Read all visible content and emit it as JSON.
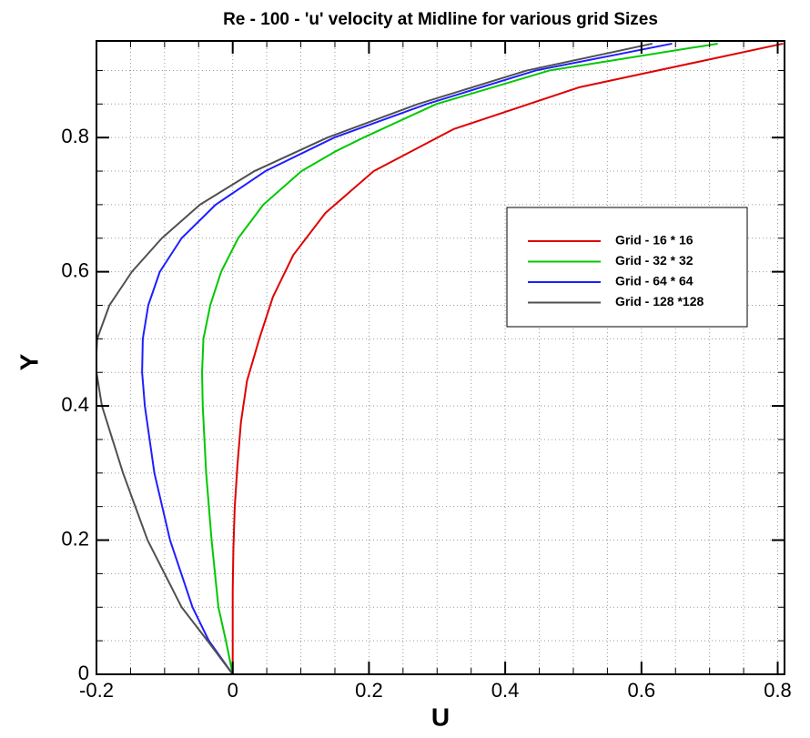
{
  "chart_data": {
    "type": "line",
    "title": "Re - 100 - 'u' velocity at Midline for various grid Sizes",
    "x_label": "U",
    "y_label": "Y",
    "xlim": [
      -0.2,
      0.81
    ],
    "ylim": [
      0,
      0.944
    ],
    "xticks": [
      -0.2,
      0,
      0.2,
      0.4,
      0.6,
      0.8
    ],
    "yticks": [
      0,
      0.2,
      0.4,
      0.6,
      0.8
    ],
    "xminorticks": [
      -0.15,
      -0.1,
      -0.05,
      0.05,
      0.1,
      0.15,
      0.25,
      0.3,
      0.35,
      0.45,
      0.5,
      0.55,
      0.65,
      0.7,
      0.75
    ],
    "yminorticks": [
      0.05,
      0.1,
      0.15,
      0.25,
      0.3,
      0.35,
      0.45,
      0.5,
      0.55,
      0.65,
      0.7,
      0.75,
      0.85,
      0.9
    ],
    "grid": true,
    "legend": "right",
    "series": [
      {
        "name": "Grid - 16 * 16",
        "color": "#e00000",
        "x": [
          0,
          0,
          0,
          0.001,
          0.003,
          0.007,
          0.012,
          0.021,
          0.039,
          0.059,
          0.089,
          0.136,
          0.207,
          0.324,
          0.509,
          0.808
        ],
        "values": [
          0,
          0.0625,
          0.125,
          0.1875,
          0.25,
          0.3125,
          0.375,
          0.4375,
          0.5,
          0.5625,
          0.625,
          0.6875,
          0.75,
          0.8125,
          0.875,
          0.94
        ]
      },
      {
        "name": "Grid - 32 * 32",
        "color": "#00c800",
        "x": [
          0,
          -0.01,
          -0.021,
          -0.031,
          -0.039,
          -0.044,
          -0.045,
          -0.043,
          -0.033,
          -0.017,
          0.008,
          0.045,
          0.101,
          0.152,
          0.192,
          0.299,
          0.465,
          0.712
        ],
        "values": [
          0,
          0.05,
          0.1,
          0.2,
          0.3,
          0.4,
          0.45,
          0.5,
          0.55,
          0.6,
          0.65,
          0.7,
          0.75,
          0.78,
          0.8,
          0.85,
          0.9,
          0.94
        ]
      },
      {
        "name": "Grid - 64 * 64",
        "color": "#1e1eff",
        "x": [
          0,
          -0.035,
          -0.059,
          -0.092,
          -0.115,
          -0.129,
          -0.133,
          -0.132,
          -0.124,
          -0.107,
          -0.075,
          -0.025,
          0.048,
          0.149,
          0.285,
          0.445,
          0.645
        ],
        "values": [
          0,
          0.05,
          0.1,
          0.2,
          0.3,
          0.4,
          0.45,
          0.5,
          0.55,
          0.6,
          0.65,
          0.7,
          0.75,
          0.8,
          0.85,
          0.9,
          0.94
        ]
      },
      {
        "name": "Grid - 128 *128",
        "color": "#505050",
        "x": [
          0,
          -0.037,
          -0.075,
          -0.125,
          -0.161,
          -0.192,
          -0.2,
          -0.2,
          -0.199,
          -0.181,
          -0.148,
          -0.104,
          -0.048,
          0.032,
          0.139,
          0.272,
          0.432,
          0.616
        ],
        "values": [
          0,
          0.05,
          0.1,
          0.2,
          0.3,
          0.4,
          0.45,
          0.48,
          0.5,
          0.55,
          0.6,
          0.65,
          0.7,
          0.75,
          0.8,
          0.85,
          0.9,
          0.94
        ]
      }
    ]
  }
}
